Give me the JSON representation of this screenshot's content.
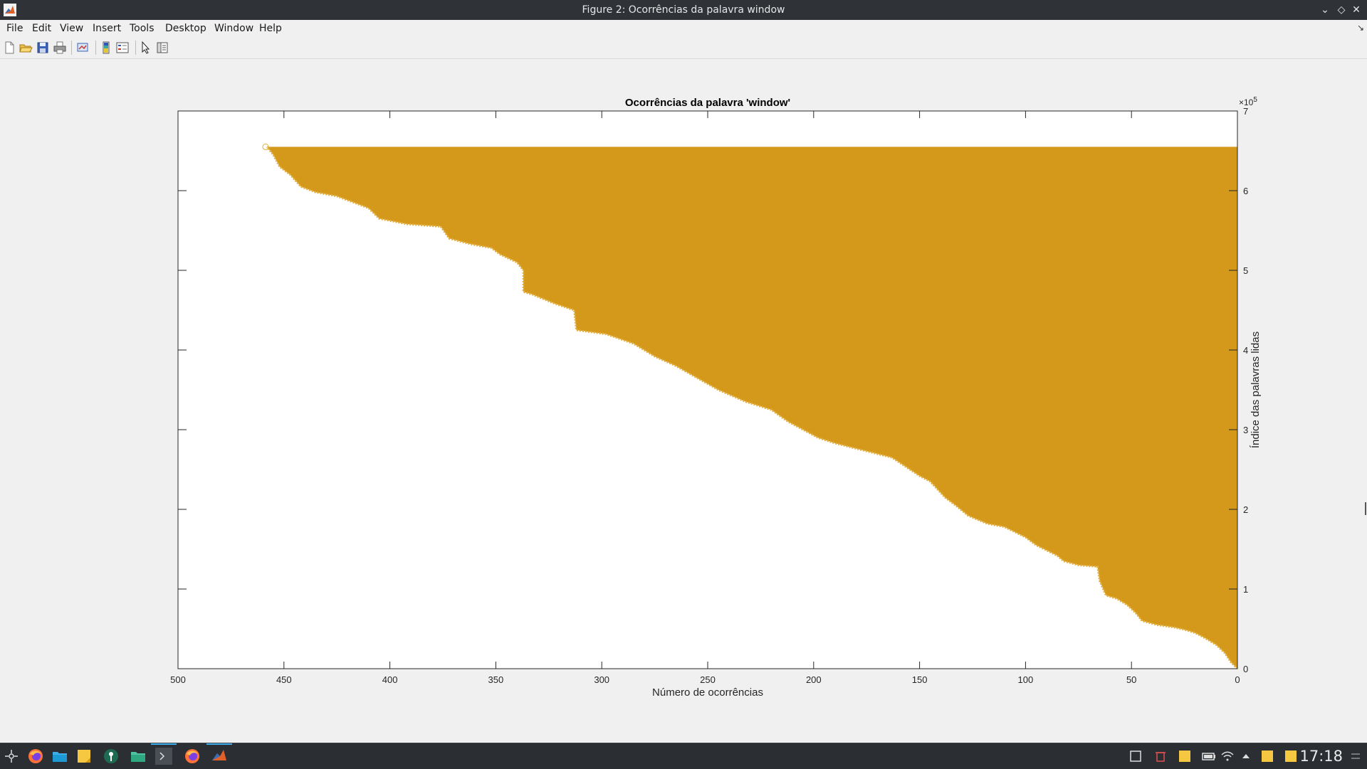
{
  "window": {
    "title": "Figure 2: Ocorrências da palavra window",
    "controls": [
      "minimize",
      "maximize",
      "close"
    ]
  },
  "menubar": {
    "items": [
      "File",
      "Edit",
      "View",
      "Insert",
      "Tools",
      "Desktop",
      "Window",
      "Help"
    ]
  },
  "toolbar": {
    "buttons": [
      "new-figure-icon",
      "open-file-icon",
      "save-icon",
      "print-icon",
      "link-plot-icon",
      "insert-colorbar-icon",
      "insert-legend-icon",
      "edit-plot-cursor-icon",
      "property-inspector-icon"
    ]
  },
  "chart_data": {
    "type": "area",
    "title": "Ocorrências da palavra 'window'",
    "xlabel": "Número de ocorrências",
    "ylabel": "Índice das palavras lidas",
    "x_direction": "reverse",
    "y_axis_location": "right",
    "xlim": [
      0,
      500
    ],
    "ylim": [
      0,
      7
    ],
    "y_exponent_label": "×10",
    "y_exponent_value": "5",
    "y_scale_multiplier": 100000,
    "x_ticks": [
      500,
      450,
      400,
      350,
      300,
      250,
      200,
      150,
      100,
      50,
      0
    ],
    "y_ticks": [
      0,
      1,
      2,
      3,
      4,
      5,
      6,
      7
    ],
    "fill_color": "#d4991a",
    "marker": "circle",
    "series": [
      {
        "points": [
          [
            0,
            0.0
          ],
          [
            3,
            0.08
          ],
          [
            6,
            0.2
          ],
          [
            10,
            0.3
          ],
          [
            15,
            0.38
          ],
          [
            20,
            0.45
          ],
          [
            25,
            0.49
          ],
          [
            30,
            0.52
          ],
          [
            38,
            0.55
          ],
          [
            45,
            0.6
          ],
          [
            48,
            0.7
          ],
          [
            52,
            0.8
          ],
          [
            57,
            0.88
          ],
          [
            62,
            0.92
          ],
          [
            65,
            1.1
          ],
          [
            66,
            1.28
          ],
          [
            75,
            1.3
          ],
          [
            82,
            1.35
          ],
          [
            85,
            1.42
          ],
          [
            95,
            1.55
          ],
          [
            100,
            1.65
          ],
          [
            110,
            1.78
          ],
          [
            118,
            1.82
          ],
          [
            127,
            1.92
          ],
          [
            133,
            2.05
          ],
          [
            138,
            2.15
          ],
          [
            145,
            2.35
          ],
          [
            150,
            2.42
          ],
          [
            163,
            2.65
          ],
          [
            175,
            2.73
          ],
          [
            190,
            2.83
          ],
          [
            198,
            2.9
          ],
          [
            212,
            3.1
          ],
          [
            220,
            3.25
          ],
          [
            232,
            3.35
          ],
          [
            245,
            3.5
          ],
          [
            255,
            3.65
          ],
          [
            265,
            3.8
          ],
          [
            275,
            3.92
          ],
          [
            285,
            4.08
          ],
          [
            298,
            4.2
          ],
          [
            312,
            4.25
          ],
          [
            313,
            4.5
          ],
          [
            322,
            4.58
          ],
          [
            333,
            4.7
          ],
          [
            337,
            4.73
          ],
          [
            337,
            5.0
          ],
          [
            340,
            5.1
          ],
          [
            348,
            5.2
          ],
          [
            352,
            5.28
          ],
          [
            362,
            5.33
          ],
          [
            372,
            5.4
          ],
          [
            376,
            5.55
          ],
          [
            392,
            5.58
          ],
          [
            405,
            5.65
          ],
          [
            410,
            5.78
          ],
          [
            425,
            5.93
          ],
          [
            435,
            5.98
          ],
          [
            442,
            6.05
          ],
          [
            447,
            6.2
          ],
          [
            452,
            6.3
          ],
          [
            455,
            6.45
          ],
          [
            458,
            6.55
          ]
        ],
        "top_value": 6.55
      }
    ]
  },
  "taskbar": {
    "apps": [
      "app-launcher-icon",
      "firefox-icon",
      "file-manager-icon",
      "sticky-notes-icon",
      "keepassxc-icon",
      "files-icon",
      "terminal-icon",
      "firefox-icon",
      "matlab-icon"
    ],
    "tray": [
      "show-desktop-icon",
      "trash-icon",
      "notes-icon",
      "battery-icon",
      "wifi-icon",
      "tray-expand-icon",
      "notes-icon",
      "notes-icon"
    ],
    "clock": "17:18"
  }
}
